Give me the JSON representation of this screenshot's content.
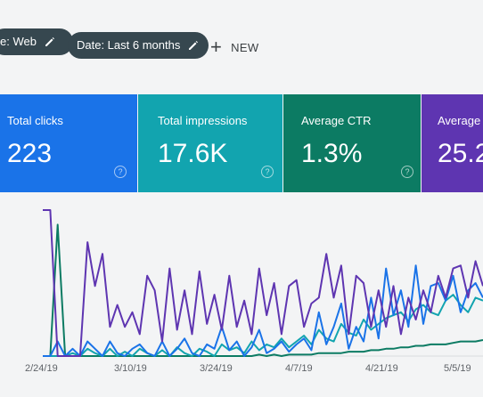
{
  "filters": {
    "type_chip": "e: Web",
    "date_chip": "Date: Last 6 months",
    "new_label": "NEW"
  },
  "cards": [
    {
      "label": "Total clicks",
      "value": "223",
      "color": "#1a73e8"
    },
    {
      "label": "Total impressions",
      "value": "17.6K",
      "color": "#12a4af"
    },
    {
      "label": "Average CTR",
      "value": "1.3%",
      "color": "#0c7b63"
    },
    {
      "label": "Average po",
      "value": "25.2",
      "color": "#5e35b1"
    }
  ],
  "chart_data": {
    "type": "line",
    "x_ticks": [
      "2/24/19",
      "3/10/19",
      "3/24/19",
      "4/7/19",
      "4/21/19",
      "5/5/19"
    ],
    "ylim": [
      0,
      100
    ],
    "series": [
      {
        "color": "#5e35b1",
        "values": [
          100,
          100,
          0,
          0,
          0,
          0,
          78,
          48,
          70,
          20,
          35,
          20,
          30,
          15,
          55,
          45,
          10,
          60,
          18,
          45,
          15,
          58,
          22,
          42,
          18,
          55,
          20,
          38,
          15,
          60,
          28,
          50,
          15,
          48,
          52,
          20,
          36,
          40,
          70,
          40,
          62,
          15,
          55,
          50,
          20,
          45,
          20,
          48,
          15,
          40,
          25,
          45,
          30,
          55,
          40,
          60,
          62,
          40,
          65,
          48
        ]
      },
      {
        "color": "#1a73e8",
        "values": [
          0,
          0,
          10,
          0,
          5,
          0,
          10,
          5,
          0,
          10,
          2,
          0,
          5,
          8,
          2,
          0,
          10,
          0,
          5,
          12,
          2,
          0,
          8,
          5,
          20,
          4,
          10,
          0,
          6,
          18,
          2,
          5,
          10,
          3,
          8,
          12,
          4,
          30,
          8,
          20,
          36,
          5,
          20,
          10,
          40,
          12,
          60,
          28,
          45,
          20,
          62,
          22,
          48,
          50,
          38,
          55,
          30,
          45,
          50,
          40
        ]
      },
      {
        "color": "#12a4af",
        "values": [
          0,
          0,
          0,
          0,
          2,
          0,
          5,
          2,
          0,
          5,
          0,
          3,
          0,
          5,
          2,
          0,
          4,
          0,
          6,
          2,
          0,
          5,
          3,
          0,
          8,
          4,
          6,
          2,
          10,
          4,
          8,
          6,
          12,
          6,
          10,
          14,
          8,
          18,
          12,
          10,
          22,
          16,
          14,
          25,
          18,
          22,
          26,
          28,
          30,
          24,
          32,
          35,
          30,
          28,
          38,
          42,
          35,
          30,
          40,
          38
        ]
      },
      {
        "color": "#0c7b63",
        "values": [
          0,
          0,
          90,
          0,
          0,
          0,
          0,
          0,
          0,
          0,
          0,
          0,
          0,
          0,
          0,
          0,
          0,
          0,
          0,
          0,
          0,
          0,
          0,
          0,
          0,
          0,
          0,
          0,
          0,
          1,
          0,
          1,
          0,
          1,
          1,
          1,
          1,
          2,
          2,
          2,
          2,
          3,
          3,
          3,
          4,
          4,
          5,
          5,
          6,
          6,
          7,
          7,
          8,
          8,
          8,
          9,
          10,
          10,
          10,
          11
        ]
      }
    ]
  }
}
